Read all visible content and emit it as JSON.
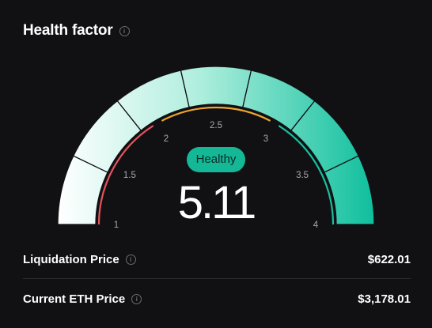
{
  "header": {
    "title": "Health factor",
    "info_icon": "info-icon"
  },
  "gauge": {
    "min": 1,
    "max": 4,
    "value": 5.11,
    "tick_labels": [
      "1",
      "1.5",
      "2",
      "2.5",
      "3",
      "3.5",
      "4"
    ],
    "status_label": "Healthy",
    "value_text": "5.11",
    "colors": {
      "danger": "#e5525c",
      "warning": "#f0a630",
      "safe": "#18bfa0",
      "badge": "#14b896",
      "outer_start": "#ffffff",
      "outer_end": "#0fbf9d"
    }
  },
  "details": {
    "liquidation_price": {
      "label": "Liquidation Price",
      "value": "$622.01"
    },
    "current_eth_price": {
      "label": "Current ETH Price",
      "value": "$3,178.01"
    }
  }
}
